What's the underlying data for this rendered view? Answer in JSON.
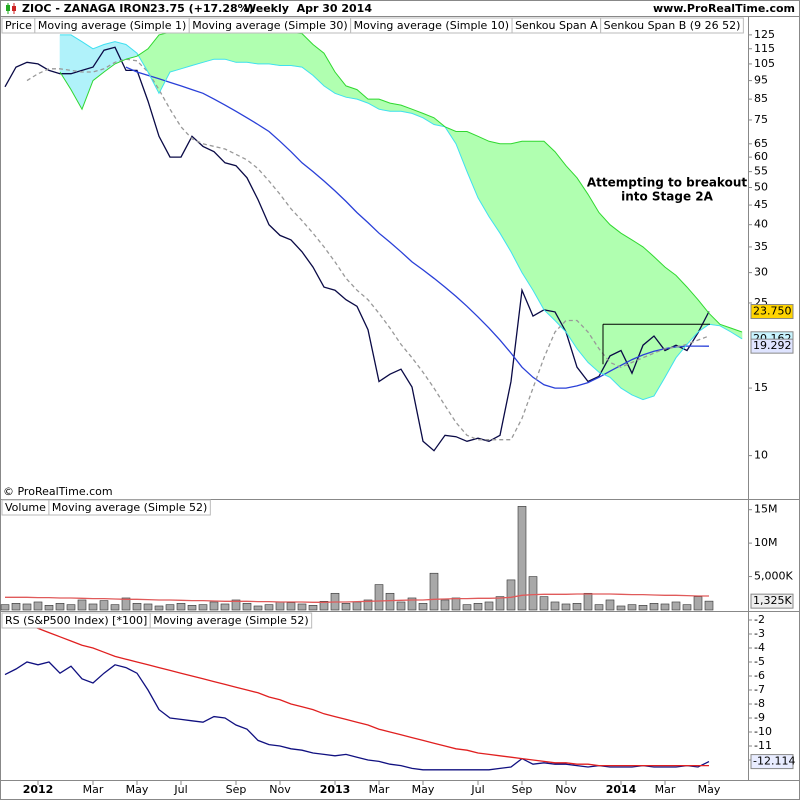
{
  "header": {
    "symbol": "ZIOC - ZANAGA IRON",
    "quote": "23.75 (+17.28%)",
    "period": "Weekly  Apr 30 2014",
    "site": "www.ProRealTime.com"
  },
  "chart_data": [
    {
      "type": "line",
      "label": "Price",
      "log": true,
      "ylim": [
        7.8,
        140
      ],
      "yticks": [
        10,
        15,
        25,
        30,
        35,
        40,
        45,
        50,
        55,
        60,
        65,
        75,
        85,
        95,
        105,
        115,
        125
      ],
      "copyright": "© ProRealTime.com",
      "annotation": [
        "Attempting to breakout",
        "into Stage 2A"
      ],
      "resistance": 22,
      "series": [
        {
          "name": "Moving average (Simple 1)",
          "color": "#0a0a46",
          "values": [
            91.5,
            103,
            106,
            105,
            101,
            99,
            99,
            101,
            103,
            114,
            116,
            101,
            101,
            84,
            68,
            60,
            60,
            68,
            64,
            62,
            58,
            57,
            53,
            46.5,
            40,
            37.5,
            36.5,
            34,
            31,
            27.5,
            27,
            25.5,
            24.5,
            21.3,
            15.6,
            16.3,
            16.8,
            15.1,
            10.9,
            10.3,
            11.3,
            11.2,
            10.9,
            11.1,
            10.9,
            11.3,
            15.6,
            27,
            23.1,
            24,
            23.7,
            21,
            17,
            15.6,
            16.1,
            18.2,
            18.8,
            16.4,
            19.4,
            20.5,
            18.8,
            19.4,
            18.8,
            20.9,
            23.75,
            null,
            null,
            null
          ]
        },
        {
          "name": "Moving average (Simple 30)",
          "color": "#2a40d8",
          "values": [
            null,
            null,
            null,
            null,
            null,
            null,
            null,
            null,
            null,
            null,
            null,
            103,
            100,
            98,
            96,
            94,
            92,
            90,
            88,
            85,
            82,
            79,
            76,
            73,
            70,
            66,
            62,
            58,
            55,
            52,
            49,
            46,
            43,
            40.5,
            38,
            36,
            34,
            32,
            30.5,
            29,
            27.5,
            26,
            24.5,
            23,
            21.5,
            20,
            18.5,
            17,
            16,
            15.3,
            15,
            15,
            15.2,
            15.5,
            16,
            16.6,
            17.2,
            17.8,
            18.3,
            18.7,
            19,
            19.2,
            19.3,
            19.3,
            19.292,
            null,
            null,
            null
          ]
        },
        {
          "name": "Moving average (Simple 10)",
          "color": "#999999",
          "dash": true,
          "values": [
            null,
            null,
            95,
            99,
            102,
            102,
            101,
            100,
            100,
            102,
            106,
            108,
            107,
            100,
            90,
            80,
            72,
            67,
            65,
            64,
            63,
            61,
            59,
            56,
            52,
            48,
            44,
            41,
            38,
            35,
            32,
            29,
            27,
            25.5,
            23.5,
            21.5,
            19.5,
            18,
            16.5,
            15,
            13.5,
            12.2,
            11.3,
            11,
            11,
            11,
            11,
            12.5,
            15,
            18,
            21,
            22.5,
            22.5,
            21,
            19,
            17.5,
            17,
            17.5,
            18,
            18.5,
            19,
            19.2,
            19.5,
            20,
            20.5,
            null,
            null,
            null
          ]
        },
        {
          "name": "Senkou Span A",
          "color": "#40e0f0",
          "fill": "#b0f2fa",
          "values": [
            null,
            null,
            null,
            null,
            null,
            125,
            125,
            120,
            115,
            118,
            120,
            118,
            112,
            100,
            88,
            100,
            102,
            104,
            106,
            108,
            108,
            106,
            106,
            105,
            105,
            104,
            104,
            103,
            98,
            92,
            88,
            86,
            85,
            83,
            80,
            79,
            79,
            78,
            76,
            73,
            72,
            65,
            55,
            47,
            42,
            38,
            34,
            30,
            27,
            24,
            22.5,
            21,
            19,
            17.5,
            16.5,
            16,
            15,
            14.4,
            14,
            14.3,
            16,
            18,
            19.5,
            21,
            22,
            21.8,
            21,
            20.162
          ]
        },
        {
          "name": "Senkou Span B (9 26 52)",
          "color": "#30d830",
          "fill": "#b0ffb0",
          "values": [
            null,
            null,
            null,
            null,
            null,
            100,
            90,
            80,
            95,
            100,
            105,
            108,
            110,
            115,
            125,
            127,
            127,
            127,
            127,
            127,
            127,
            127,
            127,
            127,
            127,
            127,
            127,
            126,
            118,
            112,
            100,
            92,
            90,
            85,
            85,
            83,
            82,
            80,
            78,
            76,
            72,
            70,
            70,
            68,
            66,
            65,
            65,
            66,
            66,
            66,
            62,
            57,
            53,
            48,
            43,
            40,
            38,
            36.5,
            35,
            33,
            31,
            29.5,
            27.5,
            25.5,
            23.5,
            22,
            21.5,
            21
          ]
        }
      ],
      "markers": [
        {
          "value": 23.75,
          "label": "23.750",
          "color": "#ffd400"
        },
        {
          "value": 20.162,
          "label": "20.162",
          "color": "#c8f4ff"
        },
        {
          "value": 19.292,
          "label": "19.292",
          "color": "#dfe4ff"
        }
      ]
    },
    {
      "type": "bar",
      "ylim": [
        0,
        16000000
      ],
      "yticks": [
        {
          "value": 5000000,
          "label": "5,000K"
        },
        {
          "value": 10000000,
          "label": "10M"
        },
        {
          "value": 15000000,
          "label": "15M"
        }
      ],
      "series": [
        {
          "name": "Volume",
          "color": "#a8a8a8",
          "values": [
            800000,
            1000000,
            900000,
            1200000,
            700000,
            1000000,
            800000,
            1500000,
            900000,
            1400000,
            800000,
            1800000,
            1000000,
            900000,
            600000,
            800000,
            1000000,
            700000,
            800000,
            1200000,
            900000,
            1500000,
            1000000,
            600000,
            800000,
            1200000,
            1100000,
            900000,
            700000,
            1300000,
            2500000,
            1000000,
            1200000,
            1500000,
            3800000,
            2500000,
            1200000,
            1800000,
            1000000,
            5500000,
            1500000,
            1800000,
            800000,
            1000000,
            1200000,
            2000000,
            4500000,
            15500000,
            5000000,
            2000000,
            1200000,
            900000,
            1000000,
            2500000,
            800000,
            1500000,
            600000,
            800000,
            700000,
            1000000,
            900000,
            1200000,
            800000,
            2000000,
            1325000,
            null,
            null,
            null
          ]
        },
        {
          "name": "Moving average (Simple 52)",
          "kind": "line",
          "color": "#e05a5a",
          "values": [
            1900000,
            1900000,
            1900000,
            1850000,
            1850000,
            1800000,
            1800000,
            1750000,
            1700000,
            1700000,
            1650000,
            1600000,
            1600000,
            1550000,
            1500000,
            1500000,
            1450000,
            1400000,
            1400000,
            1350000,
            1300000,
            1300000,
            1300000,
            1250000,
            1250000,
            1200000,
            1200000,
            1200000,
            1150000,
            1150000,
            1200000,
            1200000,
            1250000,
            1300000,
            1350000,
            1400000,
            1450000,
            1500000,
            1500000,
            1600000,
            1650000,
            1700000,
            1700000,
            1750000,
            1750000,
            1800000,
            1900000,
            2200000,
            2300000,
            2350000,
            2350000,
            2350000,
            2400000,
            2400000,
            2400000,
            2400000,
            2350000,
            2300000,
            2300000,
            2250000,
            2200000,
            2200000,
            2150000,
            2100000,
            2100000,
            null,
            null,
            null
          ]
        }
      ],
      "markers": [
        {
          "value": 1325000,
          "label": "1,325K",
          "color": "#eeeeee"
        }
      ]
    },
    {
      "type": "line",
      "ylim": [
        -13.5,
        -1.5
      ],
      "yticks": [
        -2,
        -3,
        -4,
        -5,
        -6,
        -7,
        -8,
        -9,
        -10,
        -11,
        -12
      ],
      "categories": [
        null,
        null,
        null,
        "2012",
        null,
        null,
        null,
        null,
        "Mar",
        null,
        null,
        null,
        "May",
        null,
        null,
        null,
        "Jul",
        null,
        null,
        null,
        null,
        "Sep",
        null,
        null,
        null,
        "Nov",
        null,
        null,
        null,
        null,
        "2013",
        null,
        null,
        null,
        "Mar",
        null,
        null,
        null,
        "May",
        null,
        null,
        null,
        null,
        "Jul",
        null,
        null,
        null,
        "Sep",
        null,
        null,
        null,
        "Nov",
        null,
        null,
        null,
        null,
        "2014",
        null,
        null,
        null,
        "Mar",
        null,
        null,
        null,
        "May",
        null,
        null,
        null
      ],
      "series": [
        {
          "name": "RS (S&P500 Index) [*100]",
          "color": "#101080",
          "values": [
            -5.9,
            -5.5,
            -5,
            -5.2,
            -5,
            -5.8,
            -5.3,
            -6.2,
            -6.5,
            -5.8,
            -5.2,
            -5.4,
            -5.8,
            -7,
            -8.4,
            -9,
            -9.1,
            -9.2,
            -9.3,
            -8.9,
            -9,
            -9.5,
            -9.8,
            -10.6,
            -10.9,
            -11,
            -11.2,
            -11.3,
            -11.5,
            -11.6,
            -11.7,
            -11.6,
            -11.8,
            -12,
            -12.1,
            -12.3,
            -12.4,
            -12.6,
            -12.7,
            -12.7,
            -12.7,
            -12.7,
            -12.7,
            -12.7,
            -12.7,
            -12.6,
            -12.5,
            -11.9,
            -12.3,
            -12.2,
            -12.3,
            -12.3,
            -12.4,
            -12.5,
            -12.4,
            -12.5,
            -12.5,
            -12.5,
            -12.4,
            -12.5,
            -12.5,
            -12.5,
            -12.4,
            -12.5,
            -12.114,
            null,
            null,
            null
          ]
        },
        {
          "name": "Moving average (Simple 52)",
          "color": "#e02020",
          "values": [
            -1.6,
            -1.9,
            -2.3,
            -2.6,
            -2.9,
            -3.2,
            -3.5,
            -3.8,
            -4,
            -4.3,
            -4.6,
            -4.8,
            -5,
            -5.2,
            -5.4,
            -5.6,
            -5.8,
            -6,
            -6.2,
            -6.4,
            -6.6,
            -6.8,
            -7,
            -7.2,
            -7.5,
            -7.7,
            -8,
            -8.2,
            -8.4,
            -8.7,
            -8.9,
            -9.1,
            -9.3,
            -9.5,
            -9.8,
            -10,
            -10.2,
            -10.4,
            -10.6,
            -10.8,
            -11,
            -11.2,
            -11.3,
            -11.5,
            -11.6,
            -11.7,
            -11.8,
            -11.9,
            -12,
            -12.1,
            -12.2,
            -12.2,
            -12.3,
            -12.3,
            -12.4,
            -12.4,
            -12.4,
            -12.4,
            -12.4,
            -12.4,
            -12.4,
            -12.4,
            -12.4,
            -12.4,
            -12.4,
            null,
            null,
            null
          ]
        }
      ],
      "markers": [
        {
          "value": -12.114,
          "label": "-12.114",
          "color": "#e8ecff"
        }
      ]
    }
  ]
}
